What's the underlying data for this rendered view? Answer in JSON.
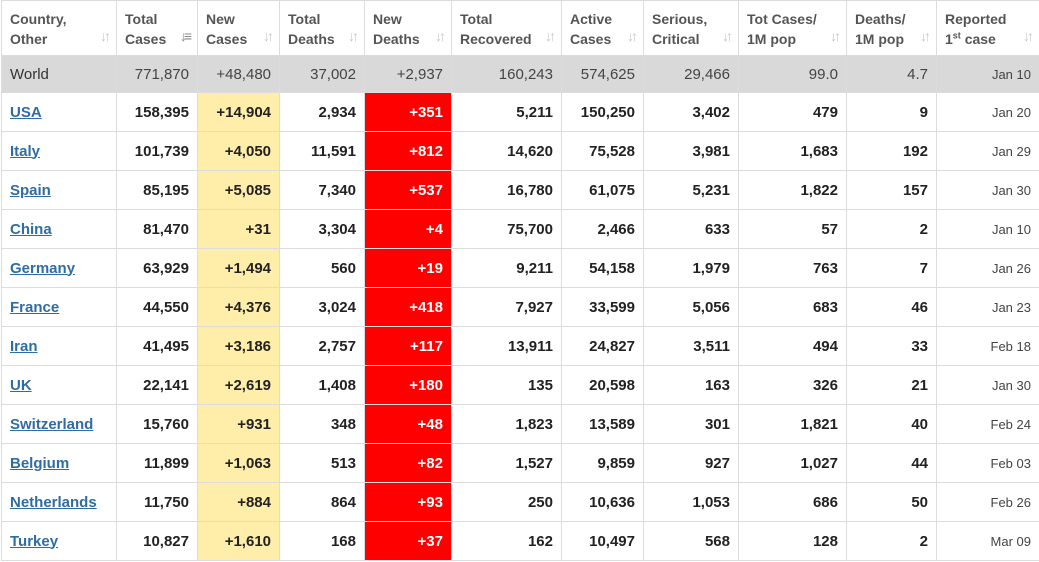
{
  "headers": [
    {
      "line1": "Country,",
      "line2": "Other",
      "sup": ""
    },
    {
      "line1": "Total",
      "line2": "Cases",
      "sup": ""
    },
    {
      "line1": "New",
      "line2": "Cases",
      "sup": ""
    },
    {
      "line1": "Total",
      "line2": "Deaths",
      "sup": ""
    },
    {
      "line1": "New",
      "line2": "Deaths",
      "sup": ""
    },
    {
      "line1": "Total",
      "line2": "Recovered",
      "sup": ""
    },
    {
      "line1": "Active",
      "line2": "Cases",
      "sup": ""
    },
    {
      "line1": "Serious,",
      "line2": "Critical",
      "sup": ""
    },
    {
      "line1": "Tot Cases/",
      "line2": "1M pop",
      "sup": ""
    },
    {
      "line1": "Deaths/",
      "line2": "1M pop",
      "sup": ""
    },
    {
      "line1": "Reported",
      "line2": "1",
      "sup": "st",
      "line2b": " case"
    }
  ],
  "colors": {
    "new_cases_bg": "#ffeeaa",
    "new_deaths_bg": "#ff0000",
    "world_row_bg": "#d9d9d9",
    "link": "#2e6da4"
  },
  "icons": {
    "sort": "sort-arrows-icon",
    "sort_active": "sort-desc-icon"
  },
  "world": {
    "country": "World",
    "total_cases": "771,870",
    "new_cases": "+48,480",
    "total_deaths": "37,002",
    "new_deaths": "+2,937",
    "total_recovered": "160,243",
    "active_cases": "574,625",
    "serious": "29,466",
    "cases_per_1m": "99.0",
    "deaths_per_1m": "4.7",
    "reported": "Jan 10"
  },
  "rows": [
    {
      "country": "USA",
      "total_cases": "158,395",
      "new_cases": "+14,904",
      "total_deaths": "2,934",
      "new_deaths": "+351",
      "total_recovered": "5,211",
      "active_cases": "150,250",
      "serious": "3,402",
      "cases_per_1m": "479",
      "deaths_per_1m": "9",
      "reported": "Jan 20"
    },
    {
      "country": "Italy",
      "total_cases": "101,739",
      "new_cases": "+4,050",
      "total_deaths": "11,591",
      "new_deaths": "+812",
      "total_recovered": "14,620",
      "active_cases": "75,528",
      "serious": "3,981",
      "cases_per_1m": "1,683",
      "deaths_per_1m": "192",
      "reported": "Jan 29"
    },
    {
      "country": "Spain",
      "total_cases": "85,195",
      "new_cases": "+5,085",
      "total_deaths": "7,340",
      "new_deaths": "+537",
      "total_recovered": "16,780",
      "active_cases": "61,075",
      "serious": "5,231",
      "cases_per_1m": "1,822",
      "deaths_per_1m": "157",
      "reported": "Jan 30"
    },
    {
      "country": "China",
      "total_cases": "81,470",
      "new_cases": "+31",
      "total_deaths": "3,304",
      "new_deaths": "+4",
      "total_recovered": "75,700",
      "active_cases": "2,466",
      "serious": "633",
      "cases_per_1m": "57",
      "deaths_per_1m": "2",
      "reported": "Jan 10"
    },
    {
      "country": "Germany",
      "total_cases": "63,929",
      "new_cases": "+1,494",
      "total_deaths": "560",
      "new_deaths": "+19",
      "total_recovered": "9,211",
      "active_cases": "54,158",
      "serious": "1,979",
      "cases_per_1m": "763",
      "deaths_per_1m": "7",
      "reported": "Jan 26"
    },
    {
      "country": "France",
      "total_cases": "44,550",
      "new_cases": "+4,376",
      "total_deaths": "3,024",
      "new_deaths": "+418",
      "total_recovered": "7,927",
      "active_cases": "33,599",
      "serious": "5,056",
      "cases_per_1m": "683",
      "deaths_per_1m": "46",
      "reported": "Jan 23"
    },
    {
      "country": "Iran",
      "total_cases": "41,495",
      "new_cases": "+3,186",
      "total_deaths": "2,757",
      "new_deaths": "+117",
      "total_recovered": "13,911",
      "active_cases": "24,827",
      "serious": "3,511",
      "cases_per_1m": "494",
      "deaths_per_1m": "33",
      "reported": "Feb 18"
    },
    {
      "country": "UK",
      "total_cases": "22,141",
      "new_cases": "+2,619",
      "total_deaths": "1,408",
      "new_deaths": "+180",
      "total_recovered": "135",
      "active_cases": "20,598",
      "serious": "163",
      "cases_per_1m": "326",
      "deaths_per_1m": "21",
      "reported": "Jan 30"
    },
    {
      "country": "Switzerland",
      "total_cases": "15,760",
      "new_cases": "+931",
      "total_deaths": "348",
      "new_deaths": "+48",
      "total_recovered": "1,823",
      "active_cases": "13,589",
      "serious": "301",
      "cases_per_1m": "1,821",
      "deaths_per_1m": "40",
      "reported": "Feb 24"
    },
    {
      "country": "Belgium",
      "total_cases": "11,899",
      "new_cases": "+1,063",
      "total_deaths": "513",
      "new_deaths": "+82",
      "total_recovered": "1,527",
      "active_cases": "9,859",
      "serious": "927",
      "cases_per_1m": "1,027",
      "deaths_per_1m": "44",
      "reported": "Feb 03"
    },
    {
      "country": "Netherlands",
      "total_cases": "11,750",
      "new_cases": "+884",
      "total_deaths": "864",
      "new_deaths": "+93",
      "total_recovered": "250",
      "active_cases": "10,636",
      "serious": "1,053",
      "cases_per_1m": "686",
      "deaths_per_1m": "50",
      "reported": "Feb 26"
    },
    {
      "country": "Turkey",
      "total_cases": "10,827",
      "new_cases": "+1,610",
      "total_deaths": "168",
      "new_deaths": "+37",
      "total_recovered": "162",
      "active_cases": "10,497",
      "serious": "568",
      "cases_per_1m": "128",
      "deaths_per_1m": "2",
      "reported": "Mar 09"
    }
  ]
}
